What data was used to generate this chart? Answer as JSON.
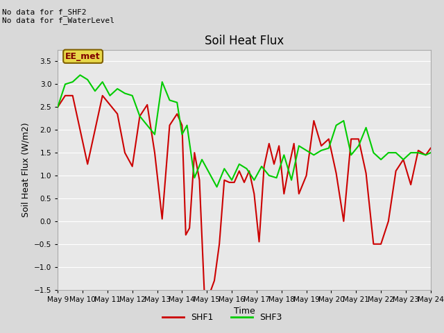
{
  "title": "Soil Heat Flux",
  "xlabel": "Time",
  "ylabel": "Soil Heat Flux (W/m2)",
  "ylim": [
    -1.5,
    3.75
  ],
  "yticks": [
    -1.5,
    -1.0,
    -0.5,
    0.0,
    0.5,
    1.0,
    1.5,
    2.0,
    2.5,
    3.0,
    3.5
  ],
  "xtick_labels": [
    "May 9",
    "May 10",
    "May 11",
    "May 12",
    "May 13",
    "May 14",
    "May 15",
    "May 16",
    "May 17",
    "May 18",
    "May 19",
    "May 20",
    "May 21",
    "May 22",
    "May 23",
    "May 24"
  ],
  "no_data_text1": "No data for f_SHF2",
  "no_data_text2": "No data for f_WaterLevel",
  "legend_label_text": "EE_met",
  "shf1_color": "#cc0000",
  "shf3_color": "#00cc00",
  "background_color": "#d9d9d9",
  "plot_bg_color": "#e8e8e8",
  "shf1_x": [
    9,
    9.3,
    9.6,
    9.9,
    10.2,
    10.5,
    10.8,
    11.1,
    11.4,
    11.7,
    12.0,
    12.3,
    12.6,
    12.9,
    13.2,
    13.5,
    13.8,
    14.0,
    14.15,
    14.3,
    14.5,
    14.7,
    14.9,
    15.1,
    15.3,
    15.5,
    15.7,
    15.9,
    16.1,
    16.3,
    16.5,
    16.7,
    16.9,
    17.1,
    17.3,
    17.5,
    17.7,
    17.9,
    18.1,
    18.3,
    18.5,
    18.7,
    19.0,
    19.3,
    19.6,
    19.9,
    20.2,
    20.5,
    20.8,
    21.1,
    21.4,
    21.7,
    22.0,
    22.3,
    22.6,
    22.9,
    23.2,
    23.5,
    23.8,
    24.0
  ],
  "shf1_y": [
    2.5,
    2.75,
    2.75,
    2.0,
    1.25,
    2.0,
    2.75,
    2.55,
    2.35,
    1.5,
    1.2,
    2.3,
    2.55,
    1.5,
    0.05,
    2.1,
    2.35,
    2.1,
    -0.3,
    -0.15,
    1.5,
    0.9,
    -1.6,
    -1.6,
    -1.3,
    -0.5,
    0.9,
    0.85,
    0.85,
    1.1,
    0.85,
    1.1,
    0.6,
    -0.45,
    1.2,
    1.7,
    1.25,
    1.65,
    0.6,
    1.2,
    1.7,
    0.6,
    1.0,
    2.2,
    1.65,
    1.8,
    1.05,
    0.0,
    1.8,
    1.8,
    1.05,
    -0.5,
    -0.5,
    0.0,
    1.1,
    1.35,
    0.8,
    1.55,
    1.45,
    1.6
  ],
  "shf3_x": [
    9,
    9.3,
    9.6,
    9.9,
    10.2,
    10.5,
    10.8,
    11.1,
    11.4,
    11.7,
    12.0,
    12.3,
    12.6,
    12.9,
    13.2,
    13.5,
    13.8,
    14.0,
    14.2,
    14.5,
    14.8,
    15.1,
    15.4,
    15.7,
    16.0,
    16.3,
    16.6,
    16.9,
    17.2,
    17.5,
    17.8,
    18.1,
    18.4,
    18.7,
    19.0,
    19.3,
    19.6,
    19.9,
    20.2,
    20.5,
    20.8,
    21.1,
    21.4,
    21.7,
    22.0,
    22.3,
    22.6,
    22.9,
    23.2,
    23.5,
    23.8,
    24.0
  ],
  "shf3_y": [
    2.5,
    3.0,
    3.05,
    3.2,
    3.1,
    2.85,
    3.05,
    2.75,
    2.9,
    2.8,
    2.75,
    2.3,
    2.1,
    1.9,
    3.05,
    2.65,
    2.6,
    1.9,
    2.1,
    0.95,
    1.35,
    1.05,
    0.75,
    1.15,
    0.9,
    1.25,
    1.15,
    0.9,
    1.2,
    1.0,
    0.95,
    1.45,
    0.9,
    1.65,
    1.55,
    1.45,
    1.55,
    1.6,
    2.1,
    2.2,
    1.45,
    1.65,
    2.05,
    1.5,
    1.35,
    1.5,
    1.5,
    1.35,
    1.5,
    1.5,
    1.45,
    1.5
  ]
}
